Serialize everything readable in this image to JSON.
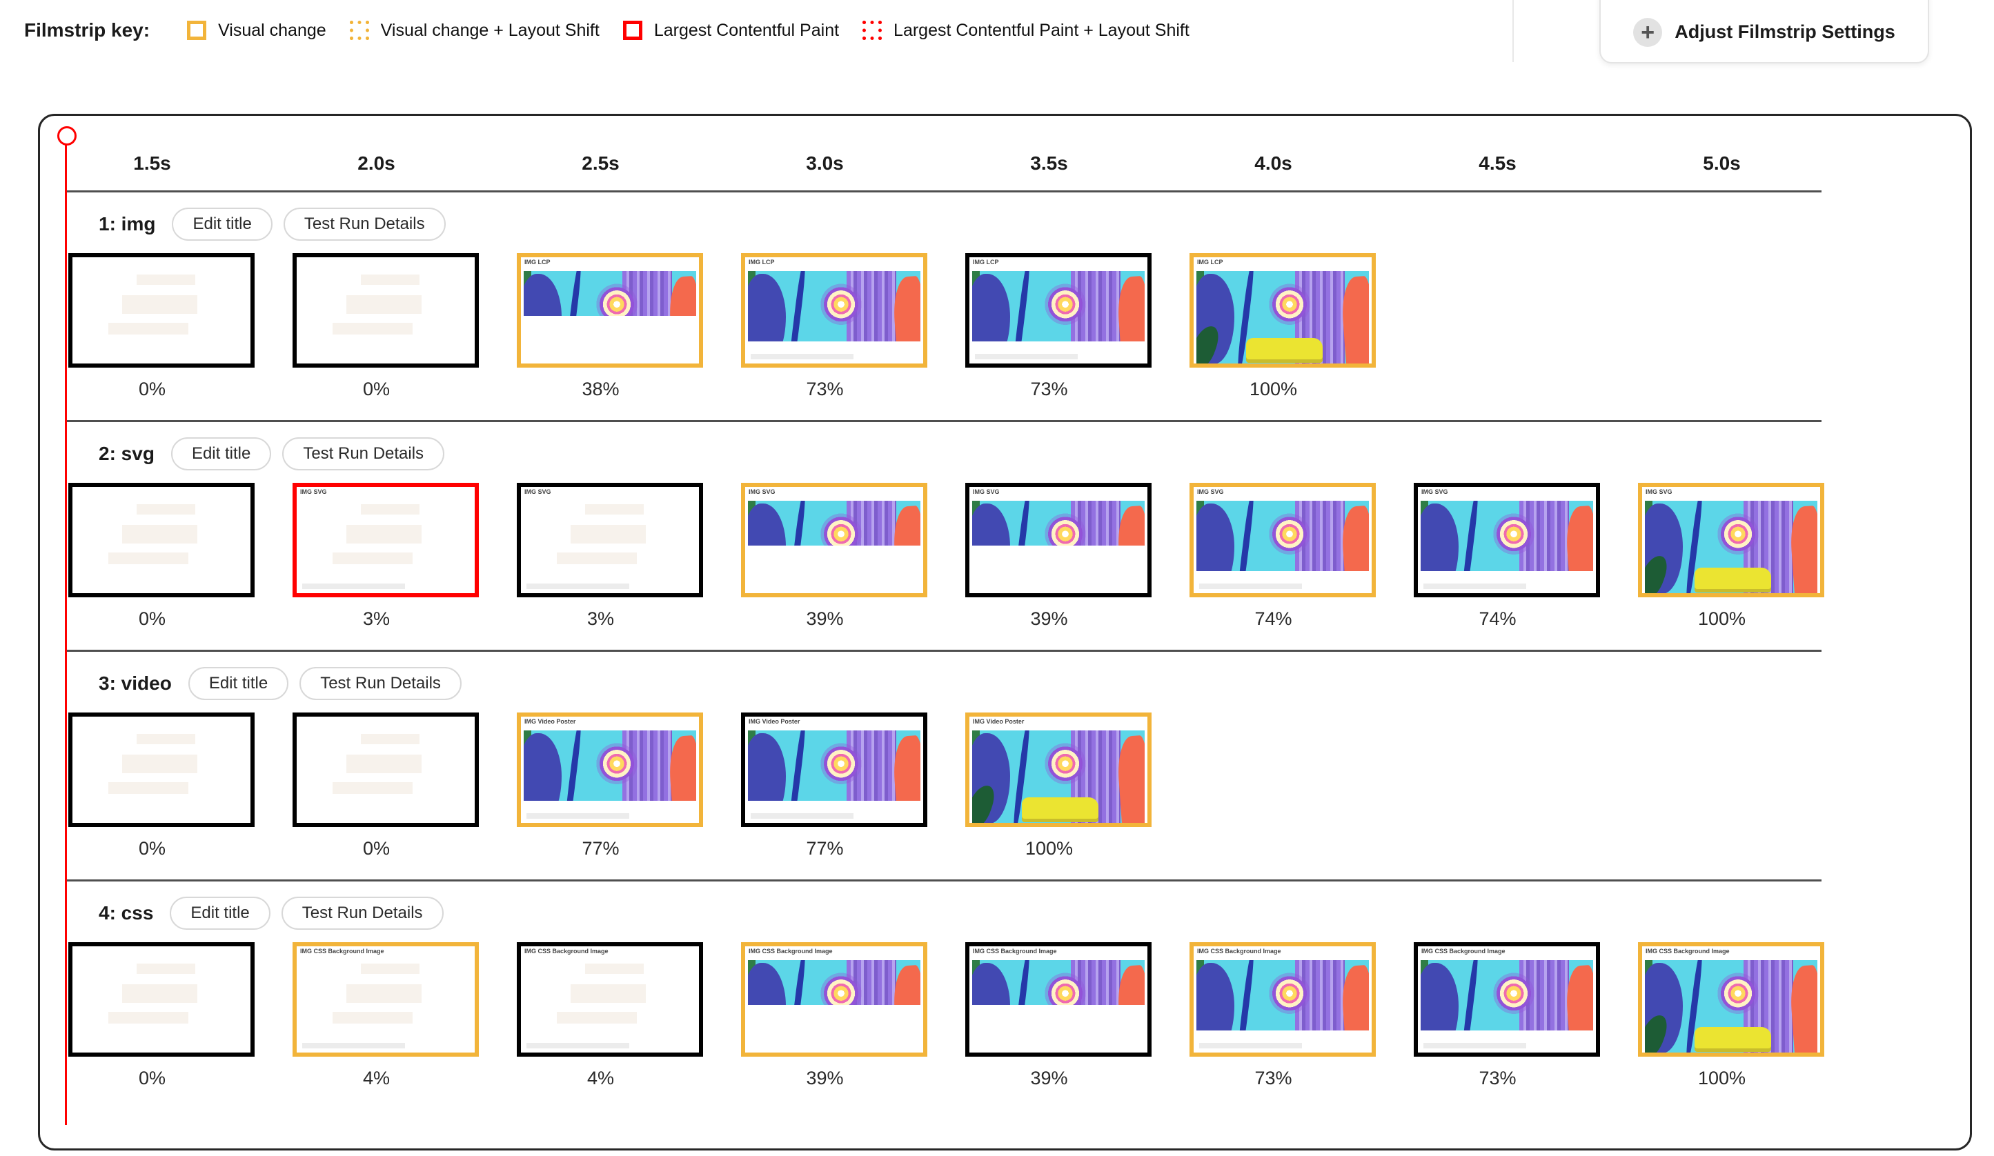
{
  "legend": {
    "title": "Filmstrip key:",
    "items": [
      {
        "label": "Visual change",
        "swatch": "visual-change-solid"
      },
      {
        "label": "Visual change + Layout Shift",
        "swatch": "visual-change-dotted"
      },
      {
        "label": "Largest Contentful Paint",
        "swatch": "lcp-solid"
      },
      {
        "label": "Largest Contentful Paint + Layout Shift",
        "swatch": "lcp-dotted"
      }
    ]
  },
  "settings_button": {
    "label": "Adjust Filmstrip Settings",
    "icon": "plus-icon"
  },
  "colors": {
    "visual_change": "#F2B43A",
    "lcp": "#FF0000",
    "no_change": "#000000",
    "cursor": "#FF0000"
  },
  "filmstrip": {
    "time_labels": [
      "1.5s",
      "2.0s",
      "2.5s",
      "3.0s",
      "3.5s",
      "4.0s",
      "4.5s",
      "5.0s"
    ],
    "buttons": {
      "edit": "Edit title",
      "details": "Test Run Details"
    },
    "rows": [
      {
        "title": "1: img",
        "frame_label": "IMG LCP",
        "frames": [
          {
            "percent": "0%",
            "border": "no_change",
            "state": "blank"
          },
          {
            "percent": "0%",
            "border": "no_change",
            "state": "blank"
          },
          {
            "percent": "38%",
            "border": "visual_change",
            "state": "partial"
          },
          {
            "percent": "73%",
            "border": "visual_change",
            "state": "mostly"
          },
          {
            "percent": "73%",
            "border": "no_change",
            "state": "mostly"
          },
          {
            "percent": "100%",
            "border": "visual_change",
            "state": "full"
          }
        ]
      },
      {
        "title": "2: svg",
        "frame_label": "IMG SVG",
        "frames": [
          {
            "percent": "0%",
            "border": "no_change",
            "state": "blank"
          },
          {
            "percent": "3%",
            "border": "lcp",
            "state": "label-only"
          },
          {
            "percent": "3%",
            "border": "no_change",
            "state": "label-only"
          },
          {
            "percent": "39%",
            "border": "visual_change",
            "state": "partial"
          },
          {
            "percent": "39%",
            "border": "no_change",
            "state": "partial"
          },
          {
            "percent": "74%",
            "border": "visual_change",
            "state": "mostly"
          },
          {
            "percent": "74%",
            "border": "no_change",
            "state": "mostly"
          },
          {
            "percent": "100%",
            "border": "visual_change",
            "state": "full"
          }
        ]
      },
      {
        "title": "3: video",
        "frame_label": "IMG Video Poster",
        "frames": [
          {
            "percent": "0%",
            "border": "no_change",
            "state": "blank"
          },
          {
            "percent": "0%",
            "border": "no_change",
            "state": "blank"
          },
          {
            "percent": "77%",
            "border": "visual_change",
            "state": "mostly"
          },
          {
            "percent": "77%",
            "border": "no_change",
            "state": "mostly"
          },
          {
            "percent": "100%",
            "border": "visual_change",
            "state": "full"
          }
        ]
      },
      {
        "title": "4: css",
        "frame_label": "IMG CSS Background Image",
        "frames": [
          {
            "percent": "0%",
            "border": "no_change",
            "state": "blank"
          },
          {
            "percent": "4%",
            "border": "visual_change",
            "state": "label-only"
          },
          {
            "percent": "4%",
            "border": "no_change",
            "state": "label-only"
          },
          {
            "percent": "39%",
            "border": "visual_change",
            "state": "partial"
          },
          {
            "percent": "39%",
            "border": "no_change",
            "state": "partial"
          },
          {
            "percent": "73%",
            "border": "visual_change",
            "state": "mostly"
          },
          {
            "percent": "73%",
            "border": "no_change",
            "state": "mostly"
          },
          {
            "percent": "100%",
            "border": "visual_change",
            "state": "full"
          }
        ]
      }
    ]
  }
}
